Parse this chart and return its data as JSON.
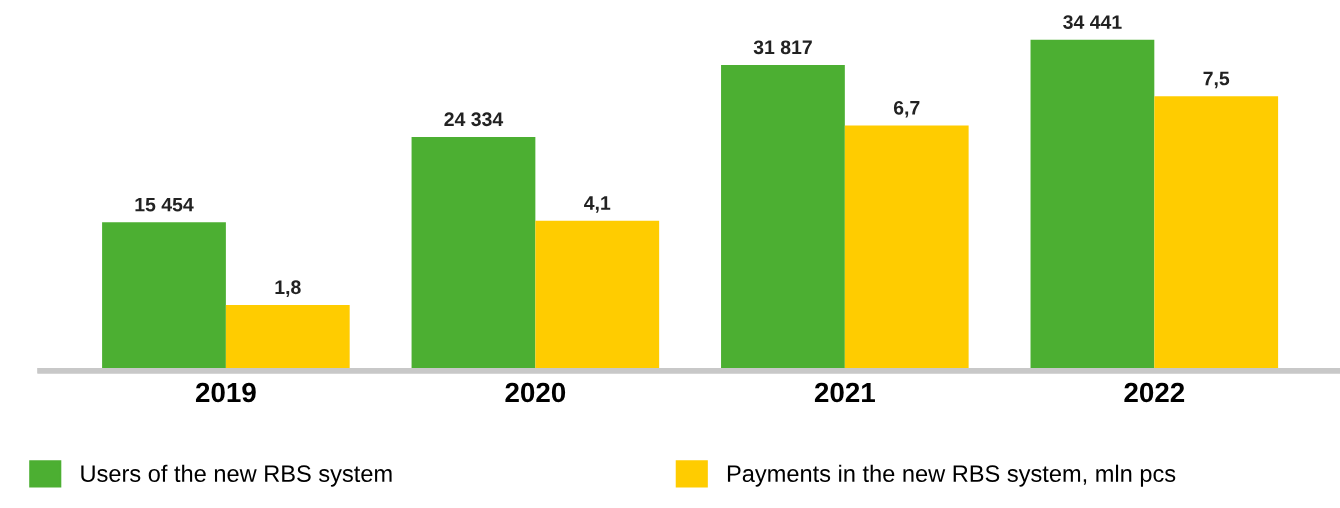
{
  "chart_data": {
    "type": "bar",
    "categories": [
      "2019",
      "2020",
      "2021",
      "2022"
    ],
    "series": [
      {
        "name": "Users of the new RBS system",
        "color": "#4caf32",
        "values": [
          15454,
          24334,
          31817,
          34441
        ],
        "value_labels": [
          "15 454",
          "24 334",
          "31 817",
          "34 441"
        ]
      },
      {
        "name": "Payments in the new RBS system, mln pcs",
        "color": "#ffcc00",
        "axis": "y2",
        "values": [
          1.8,
          4.1,
          6.7,
          7.5
        ],
        "value_labels": [
          "1,8",
          "4,1",
          "6,7",
          "7,5"
        ]
      }
    ],
    "tick_labels": "x",
    "legend": "bottom",
    "grid": false
  }
}
